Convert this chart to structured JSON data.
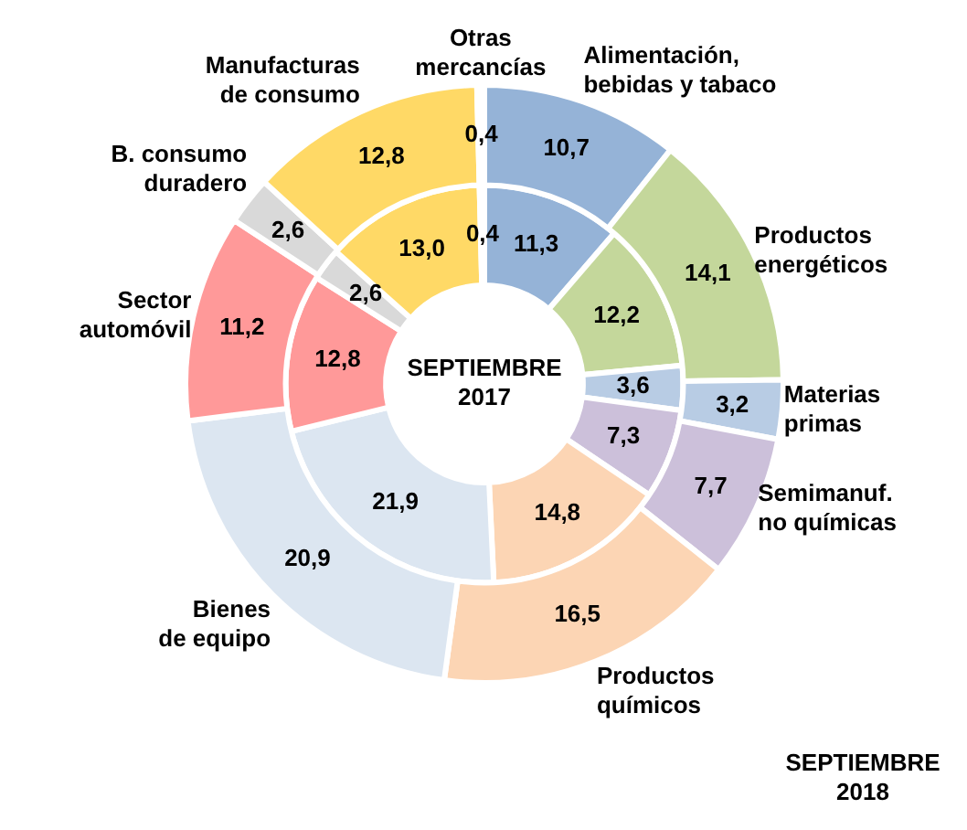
{
  "chart_data": {
    "type": "donut",
    "categories": [
      "Alimentación, bebidas y tabaco",
      "Productos energéticos",
      "Materias primas",
      "Semimanuf. no químicas",
      "Productos químicos",
      "Bienes de equipo",
      "Sector automóvil",
      "B. consumo duradero",
      "Manufacturas de consumo",
      "Otras mercancías"
    ],
    "colors": [
      "#95b3d7",
      "#c4d79b",
      "#b8cce4",
      "#ccc0da",
      "#fcd5b4",
      "#dce6f1",
      "#ff9999",
      "#d9d9d9",
      "#ffd966",
      "#ffffff"
    ],
    "series": [
      {
        "name": "SEPTIEMBRE 2018",
        "values": [
          10.7,
          14.1,
          3.2,
          7.7,
          16.5,
          20.9,
          11.2,
          2.6,
          12.8,
          0.4
        ],
        "value_labels": [
          "10,7",
          "14,1",
          "3,2",
          "7,7",
          "16,5",
          "20,9",
          "11,2",
          "2,6",
          "12,8",
          "0,4"
        ]
      },
      {
        "name": "SEPTIEMBRE 2017",
        "values": [
          11.3,
          12.2,
          3.6,
          7.3,
          14.8,
          21.9,
          12.8,
          2.6,
          13.0,
          0.4
        ],
        "value_labels": [
          "11,3",
          "12,2",
          "3,6",
          "7,3",
          "14,8",
          "21,9",
          "12,8",
          "2,6",
          "13,0",
          "0,4"
        ]
      }
    ]
  }
}
